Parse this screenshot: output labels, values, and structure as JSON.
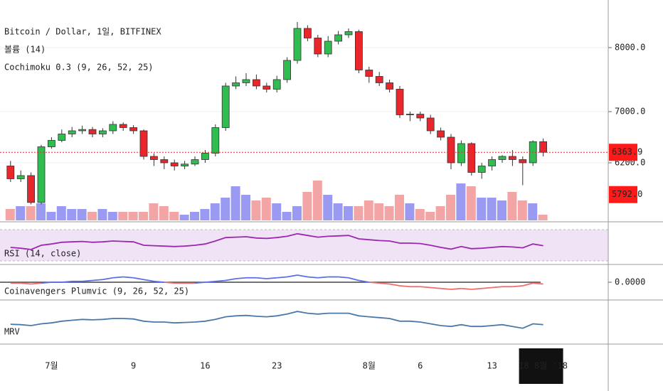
{
  "chart_data": {
    "type": "candlestick",
    "title": "Bitcoin / Dollar, 1일, BITFINEX",
    "volume_title": "볼륨 (14)",
    "ichimoku_title": "Cochimoku 0.3 (9, 26, 52, 25)",
    "categories": [
      null,
      null,
      null,
      null,
      "7월",
      null,
      null,
      null,
      null,
      null,
      null,
      null,
      "9",
      null,
      null,
      null,
      null,
      null,
      null,
      "16",
      null,
      null,
      null,
      null,
      null,
      null,
      "23",
      null,
      null,
      null,
      null,
      null,
      null,
      null,
      null,
      "8월",
      null,
      null,
      null,
      null,
      "6",
      null,
      null,
      null,
      null,
      null,
      null,
      "13",
      null,
      null,
      null,
      null,
      "18 8월 '18"
    ],
    "open": [
      6150,
      5950,
      6000,
      5580,
      6450,
      6550,
      6650,
      6700,
      6720,
      6650,
      6700,
      6800,
      6750,
      6700,
      6300,
      6250,
      6200,
      6150,
      6180,
      6250,
      6350,
      6750,
      7400,
      7450,
      7500,
      7400,
      7350,
      7500,
      7800,
      8300,
      8150,
      7900,
      8100,
      8200,
      8250,
      7650,
      7550,
      7450,
      7350,
      6950,
      6960,
      6900,
      6700,
      6600,
      6200,
      6500,
      6050,
      6150,
      6250,
      6300,
      6250,
      6200,
      6530
    ],
    "high": [
      6230,
      6080,
      6050,
      6480,
      6600,
      6720,
      6760,
      6780,
      6760,
      6740,
      6850,
      6830,
      6790,
      6720,
      6350,
      6300,
      6250,
      6230,
      6300,
      6400,
      6800,
      7450,
      7550,
      7600,
      7580,
      7450,
      7560,
      7850,
      8400,
      8350,
      8200,
      8180,
      8260,
      8300,
      8280,
      7700,
      7620,
      7500,
      7400,
      7000,
      7000,
      6950,
      6750,
      6650,
      6550,
      6520,
      6200,
      6300,
      6320,
      6400,
      6300,
      6550,
      6580
    ],
    "low": [
      5900,
      5900,
      5550,
      5550,
      6420,
      6520,
      6600,
      6650,
      6600,
      6600,
      6650,
      6700,
      6650,
      6250,
      6150,
      6100,
      6080,
      6100,
      6150,
      6200,
      6300,
      6700,
      7350,
      7400,
      7350,
      7300,
      7300,
      7450,
      7750,
      8100,
      7850,
      7850,
      8050,
      8150,
      7600,
      7450,
      7400,
      7300,
      6900,
      6850,
      6850,
      6650,
      6550,
      6100,
      6150,
      6000,
      5950,
      6080,
      6200,
      6150,
      5850,
      6150,
      6300
    ],
    "close": [
      5950,
      6000,
      5580,
      6450,
      6550,
      6650,
      6700,
      6720,
      6650,
      6700,
      6800,
      6750,
      6700,
      6300,
      6250,
      6200,
      6150,
      6180,
      6250,
      6350,
      6750,
      7400,
      7450,
      7500,
      7400,
      7350,
      7500,
      7800,
      8300,
      8150,
      7900,
      8100,
      8200,
      8250,
      7650,
      7550,
      7450,
      7350,
      6950,
      6960,
      6900,
      6700,
      6600,
      6200,
      6500,
      6050,
      6150,
      6250,
      6300,
      6250,
      6200,
      6530,
      6363.9
    ],
    "up_color": "#2ebd4e",
    "down_color": "#e8262b",
    "ylim": [
      5300,
      8744
    ],
    "yticks": [
      {
        "value": 8000,
        "label": "8000.0"
      },
      {
        "value": 7000,
        "label": "7000.0"
      },
      {
        "value": 6200,
        "label": "6200.0"
      }
    ],
    "ma_last": {
      "value": 5792,
      "label": "5792.0"
    },
    "volume": [
      20,
      25,
      25,
      30,
      15,
      25,
      20,
      20,
      15,
      20,
      15,
      15,
      15,
      15,
      30,
      25,
      15,
      10,
      15,
      20,
      30,
      40,
      60,
      45,
      35,
      40,
      30,
      15,
      25,
      50,
      70,
      45,
      30,
      25,
      25,
      35,
      30,
      25,
      45,
      30,
      20,
      15,
      25,
      45,
      65,
      60,
      40,
      40,
      35,
      50,
      35,
      30,
      10
    ],
    "vlim": [
      0,
      100
    ],
    "rsi": {
      "title": "RSI (14, close)",
      "color": "#9c27b0",
      "ylim": [
        0,
        100
      ],
      "values": [
        40,
        38,
        35,
        45,
        48,
        52,
        53,
        54,
        52,
        53,
        55,
        54,
        53,
        45,
        44,
        43,
        42,
        43,
        45,
        48,
        55,
        63,
        64,
        65,
        62,
        61,
        63,
        66,
        72,
        68,
        64,
        66,
        67,
        68,
        60,
        58,
        56,
        55,
        50,
        50,
        49,
        45,
        40,
        36,
        42,
        37,
        38,
        40,
        42,
        41,
        39,
        48,
        44
      ]
    },
    "osc": {
      "title": "Coinavengers Plumvic (9, 26, 52, 25)",
      "ylim": [
        -0.02,
        0.02
      ],
      "yticks": [
        {
          "value": 0,
          "label": "0.0000"
        }
      ],
      "pos_color": "#5b6ee8",
      "neg_color": "#f26b6b",
      "values": [
        -0.001,
        -0.001,
        -0.002,
        -0.001,
        0,
        0,
        0.001,
        0.001,
        0.002,
        0.003,
        0.005,
        0.006,
        0.005,
        0.003,
        0.001,
        0,
        -0.001,
        -0.001,
        -0.001,
        0,
        0.001,
        0.002,
        0.004,
        0.005,
        0.005,
        0.004,
        0.005,
        0.006,
        0.008,
        0.006,
        0.005,
        0.006,
        0.006,
        0.005,
        0.002,
        0,
        -0.001,
        -0.002,
        -0.004,
        -0.005,
        -0.005,
        -0.006,
        -0.007,
        -0.008,
        -0.007,
        -0.008,
        -0.007,
        -0.006,
        -0.005,
        -0.005,
        -0.004,
        -0.001,
        -0.002
      ]
    },
    "mrv": {
      "title": "MRV",
      "color": "#4a78a8",
      "ylim": [
        0,
        100
      ],
      "values": [
        45,
        44,
        42,
        46,
        48,
        52,
        54,
        56,
        55,
        56,
        58,
        58,
        57,
        52,
        50,
        50,
        48,
        49,
        50,
        52,
        56,
        62,
        64,
        65,
        63,
        62,
        64,
        68,
        74,
        70,
        68,
        70,
        70,
        70,
        64,
        62,
        60,
        58,
        52,
        52,
        50,
        46,
        42,
        40,
        44,
        40,
        40,
        42,
        44,
        40,
        36,
        46,
        44
      ]
    }
  }
}
